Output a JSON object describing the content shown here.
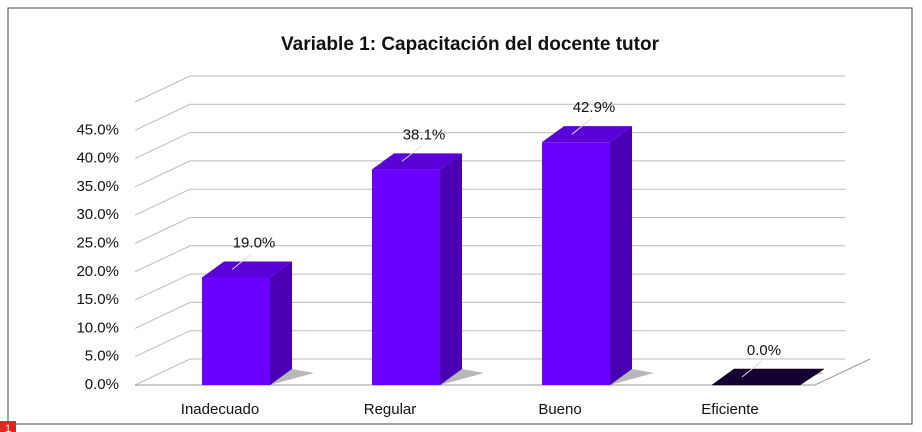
{
  "chart_data": {
    "type": "bar3d",
    "title": "Variable 1: Capacitación del docente tutor",
    "categories": [
      "Inadecuado",
      "Regular",
      "Bueno",
      "Eficiente"
    ],
    "values": [
      19.0,
      38.1,
      42.9,
      0.0
    ],
    "value_labels": [
      "19.0%",
      "38.1%",
      "42.9%",
      "0.0%"
    ],
    "color": "#6a00ff",
    "ylim": [
      0,
      50
    ],
    "yticks": [
      {
        "value": 0,
        "label": "0.0%"
      },
      {
        "value": 5,
        "label": "5.0%"
      },
      {
        "value": 10,
        "label": "10.0%"
      },
      {
        "value": 15,
        "label": "15.0%"
      },
      {
        "value": 20,
        "label": "20.0%"
      },
      {
        "value": 25,
        "label": "25.0%"
      },
      {
        "value": 30,
        "label": "30.0%"
      },
      {
        "value": 35,
        "label": "35.0%"
      },
      {
        "value": 40,
        "label": "40.0%"
      },
      {
        "value": 45,
        "label": "45.0%"
      }
    ],
    "grid": true
  },
  "badge": "1"
}
